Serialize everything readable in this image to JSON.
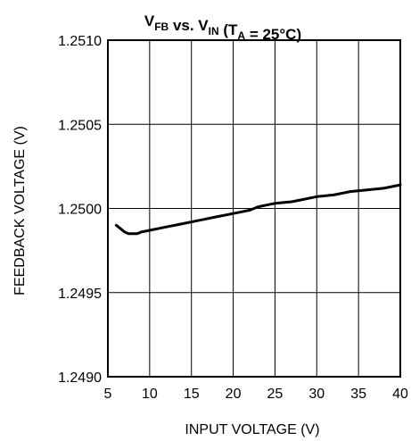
{
  "chart_data": {
    "type": "line",
    "title": {
      "parts": [
        {
          "text": "V",
          "sub": ""
        },
        {
          "text": "",
          "sub": "FB"
        },
        {
          "text": " vs. V",
          "sub": ""
        },
        {
          "text": "",
          "sub": "IN"
        },
        {
          "text": " (T",
          "sub": ""
        },
        {
          "text": "",
          "sub": "A"
        },
        {
          "text": " = 25°C)",
          "sub": ""
        }
      ]
    },
    "xlabel": "INPUT VOLTAGE (V)",
    "ylabel": "FEEDBACK VOLTAGE (V)",
    "xlim": [
      5,
      40
    ],
    "ylim": [
      1.249,
      1.251
    ],
    "xticks": [
      "5",
      "10",
      "15",
      "20",
      "25",
      "30",
      "35",
      "40"
    ],
    "yticks": [
      "1.2490",
      "1.2495",
      "1.2500",
      "1.2505",
      "1.2510"
    ],
    "grid": true,
    "series": [
      {
        "color": "#000000",
        "x": [
          6,
          6.5,
          7,
          7.5,
          8,
          8.5,
          9,
          10,
          12,
          14,
          16,
          18,
          20,
          22,
          23,
          24,
          25,
          27,
          28,
          30,
          32,
          34,
          36,
          38,
          40
        ],
        "y": [
          1.2499,
          1.24988,
          1.24986,
          1.24985,
          1.24985,
          1.24985,
          1.24986,
          1.24987,
          1.24989,
          1.24991,
          1.24993,
          1.24995,
          1.24997,
          1.24999,
          1.25001,
          1.25002,
          1.25003,
          1.25004,
          1.25005,
          1.25007,
          1.25008,
          1.2501,
          1.25011,
          1.25012,
          1.25014
        ]
      }
    ]
  }
}
